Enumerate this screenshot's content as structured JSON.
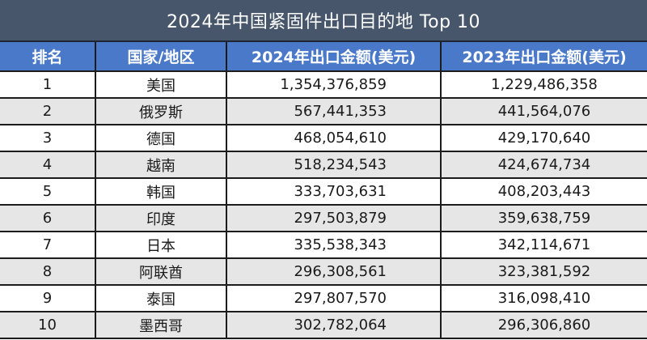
{
  "title": "2024年中国紧固件出口目的地 Top 10",
  "colors": {
    "title_bg": "#47566a",
    "header_bg": "#4a79c9",
    "row_alt_bg": "#e6e6e6",
    "row_bg": "#ffffff"
  },
  "table": {
    "headers": [
      "排名",
      "国家/地区",
      "2024年出口金额(美元)",
      "2023年出口金额(美元)"
    ],
    "rows": [
      {
        "rank": "1",
        "country": "美国",
        "v2024": "1,354,376,859",
        "v2023": "1,229,486,358"
      },
      {
        "rank": "2",
        "country": "俄罗斯",
        "v2024": "567,441,353",
        "v2023": "441,564,076"
      },
      {
        "rank": "3",
        "country": "德国",
        "v2024": "468,054,610",
        "v2023": "429,170,640"
      },
      {
        "rank": "4",
        "country": "越南",
        "v2024": "518,234,543",
        "v2023": "424,674,734"
      },
      {
        "rank": "5",
        "country": "韩国",
        "v2024": "333,703,631",
        "v2023": "408,203,443"
      },
      {
        "rank": "6",
        "country": "印度",
        "v2024": "297,503,879",
        "v2023": "359,638,759"
      },
      {
        "rank": "7",
        "country": "日本",
        "v2024": "335,538,343",
        "v2023": "342,114,671"
      },
      {
        "rank": "8",
        "country": "阿联酋",
        "v2024": "296,308,561",
        "v2023": "323,381,592"
      },
      {
        "rank": "9",
        "country": "泰国",
        "v2024": "297,807,570",
        "v2023": "316,098,410"
      },
      {
        "rank": "10",
        "country": "墨西哥",
        "v2024": "302,782,064",
        "v2023": "296,306,860"
      }
    ]
  }
}
